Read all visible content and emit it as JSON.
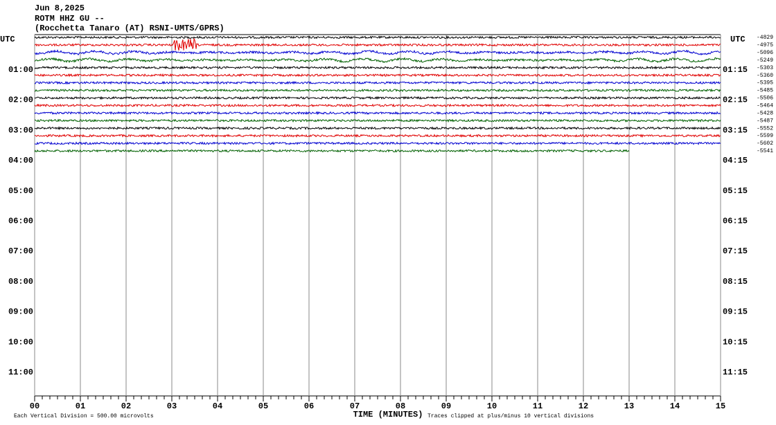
{
  "chart_data": {
    "type": "helicorder",
    "title_lines": [
      "Jun 8,2025",
      "ROTM HHZ GU --",
      "(Rocchetta Tanaro (AT) RSNI-UMTS/GPRS)"
    ],
    "left_labels": [
      "UTC",
      "01:00",
      "02:00",
      "03:00",
      "04:00",
      "05:00",
      "06:00",
      "07:00",
      "08:00",
      "09:00",
      "10:00",
      "11:00"
    ],
    "right_labels": [
      "UTC",
      "01:15",
      "02:15",
      "03:15",
      "04:15",
      "05:15",
      "06:15",
      "07:15",
      "08:15",
      "09:15",
      "10:15",
      "11:15"
    ],
    "xlabel": "TIME (MINUTES)",
    "xlim": [
      0,
      15
    ],
    "xticks": [
      {
        "value": 0,
        "label": "00"
      },
      {
        "value": 1,
        "label": "01"
      },
      {
        "value": 2,
        "label": "02"
      },
      {
        "value": 3,
        "label": "03"
      },
      {
        "value": 4,
        "label": "04"
      },
      {
        "value": 5,
        "label": "05"
      },
      {
        "value": 6,
        "label": "06"
      },
      {
        "value": 7,
        "label": "07"
      },
      {
        "value": 8,
        "label": "08"
      },
      {
        "value": 9,
        "label": "09"
      },
      {
        "value": 10,
        "label": "10"
      },
      {
        "value": 11,
        "label": "11"
      },
      {
        "value": 12,
        "label": "12"
      },
      {
        "value": 13,
        "label": "13"
      },
      {
        "value": 14,
        "label": "14"
      },
      {
        "value": 15,
        "label": "15"
      }
    ],
    "scale_note": "Each Vertical Division =  500.00 microvolts",
    "clip_note": "Traces clipped at plus/minus 10 vertical divisions",
    "traces": [
      {
        "color": "#000000",
        "offset": -4829
      },
      {
        "color": "#e00000",
        "offset": -4975
      },
      {
        "color": "#0000d0",
        "offset": -5096
      },
      {
        "color": "#006000",
        "offset": -5249
      },
      {
        "color": "#000000",
        "offset": -5303
      },
      {
        "color": "#e00000",
        "offset": -5360
      },
      {
        "color": "#0000d0",
        "offset": -5395
      },
      {
        "color": "#006000",
        "offset": -5485
      },
      {
        "color": "#000000",
        "offset": -5506
      },
      {
        "color": "#e00000",
        "offset": -5464
      },
      {
        "color": "#0000d0",
        "offset": -5428
      },
      {
        "color": "#006000",
        "offset": -5487
      },
      {
        "color": "#000000",
        "offset": -5552
      },
      {
        "color": "#e00000",
        "offset": -5599
      },
      {
        "color": "#0000d0",
        "offset": -5602
      },
      {
        "color": "#006000",
        "offset": -5541,
        "end": 13
      }
    ]
  }
}
